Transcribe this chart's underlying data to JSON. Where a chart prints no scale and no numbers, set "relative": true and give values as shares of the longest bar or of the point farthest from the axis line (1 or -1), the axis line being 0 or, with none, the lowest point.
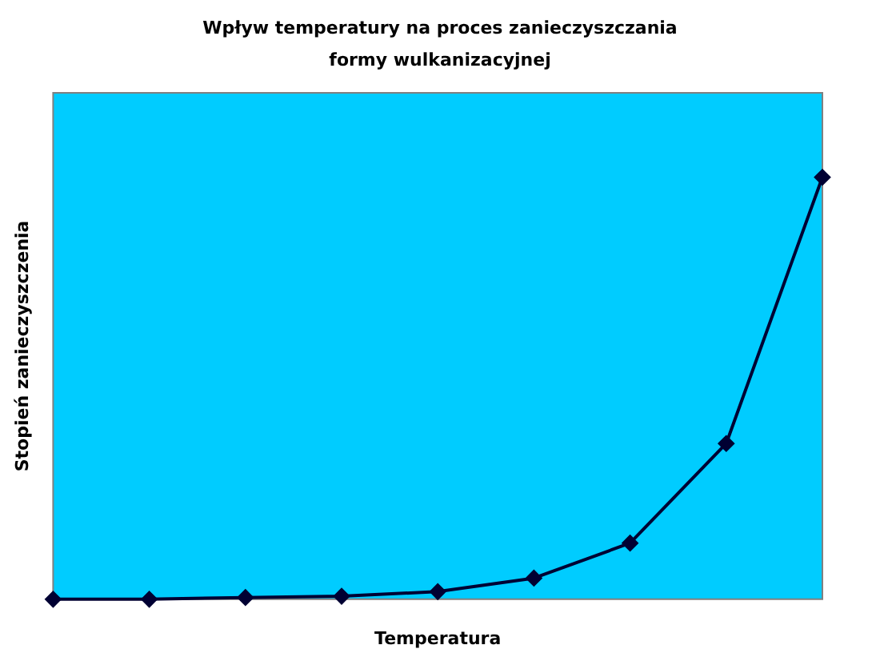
{
  "chart_data": {
    "type": "line",
    "title": "Wpływ temperatury na proces zanieczyszczania formy wulkanizacyjnej",
    "xlabel": "Temperatura",
    "ylabel": "Stopień zanieczyszczenia",
    "relative": true,
    "categories": [
      null,
      null,
      null,
      null,
      null,
      null,
      null,
      null,
      null
    ],
    "series": [
      {
        "color": "#000033",
        "values": [
          0,
          0,
          0.004,
          0.007,
          0.018,
          0.05,
          0.133,
          0.369,
          1
        ]
      }
    ],
    "marker": "diamond",
    "line_style": "solid",
    "grid": false,
    "legend": false
  }
}
